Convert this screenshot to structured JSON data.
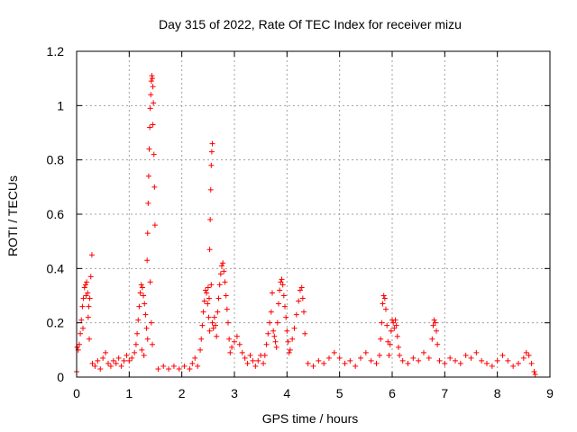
{
  "chart_data": {
    "type": "scatter",
    "title": "Day 315 of 2022, Rate Of TEC Index for receiver mizu",
    "xlabel": "GPS time / hours",
    "ylabel": "ROTI / TECUs",
    "xlim": [
      0,
      9
    ],
    "ylim": [
      0,
      1.2
    ],
    "x_ticks": [
      0,
      1,
      2,
      3,
      4,
      5,
      6,
      7,
      8,
      9
    ],
    "x_tick_labels": [
      "0",
      "1",
      "2",
      "3",
      "4",
      "5",
      "6",
      "7",
      "8",
      "9"
    ],
    "y_ticks": [
      0,
      0.2,
      0.4,
      0.6,
      0.8,
      1.0,
      1.2
    ],
    "y_tick_labels": [
      "0",
      "0.2",
      "0.4",
      "0.6",
      "0.8",
      "1",
      "1.2"
    ],
    "grid": true,
    "marker": "+",
    "marker_color": "#ff0000",
    "series": [
      {
        "name": "ROTI",
        "points": [
          [
            0.0,
            0.02
          ],
          [
            0.01,
            0.11
          ],
          [
            0.03,
            0.1
          ],
          [
            0.05,
            0.12
          ],
          [
            0.07,
            0.16
          ],
          [
            0.09,
            0.21
          ],
          [
            0.11,
            0.26
          ],
          [
            0.13,
            0.29
          ],
          [
            0.15,
            0.33
          ],
          [
            0.17,
            0.34
          ],
          [
            0.19,
            0.35
          ],
          [
            0.21,
            0.31
          ],
          [
            0.23,
            0.26
          ],
          [
            0.25,
            0.29
          ],
          [
            0.27,
            0.37
          ],
          [
            0.29,
            0.45
          ],
          [
            0.18,
            0.3
          ],
          [
            0.22,
            0.22
          ],
          [
            0.24,
            0.14
          ],
          [
            0.12,
            0.18
          ],
          [
            0.3,
            0.05
          ],
          [
            0.35,
            0.04
          ],
          [
            0.4,
            0.06
          ],
          [
            0.45,
            0.03
          ],
          [
            0.5,
            0.07
          ],
          [
            0.55,
            0.09
          ],
          [
            0.6,
            0.05
          ],
          [
            0.65,
            0.04
          ],
          [
            0.7,
            0.06
          ],
          [
            0.75,
            0.05
          ],
          [
            0.8,
            0.07
          ],
          [
            0.85,
            0.04
          ],
          [
            0.9,
            0.06
          ],
          [
            0.95,
            0.08
          ],
          [
            1.0,
            0.06
          ],
          [
            1.05,
            0.07
          ],
          [
            1.1,
            0.09
          ],
          [
            1.13,
            0.12
          ],
          [
            1.15,
            0.16
          ],
          [
            1.17,
            0.21
          ],
          [
            1.19,
            0.26
          ],
          [
            1.21,
            0.31
          ],
          [
            1.23,
            0.34
          ],
          [
            1.25,
            0.33
          ],
          [
            1.27,
            0.3
          ],
          [
            1.29,
            0.27
          ],
          [
            1.31,
            0.23
          ],
          [
            1.33,
            0.18
          ],
          [
            1.35,
            0.14
          ],
          [
            1.28,
            0.08
          ],
          [
            1.24,
            0.1
          ],
          [
            1.34,
            0.43
          ],
          [
            1.35,
            0.53
          ],
          [
            1.36,
            0.64
          ],
          [
            1.37,
            0.74
          ],
          [
            1.38,
            0.84
          ],
          [
            1.39,
            0.92
          ],
          [
            1.4,
            0.99
          ],
          [
            1.41,
            1.04
          ],
          [
            1.42,
            1.09
          ],
          [
            1.43,
            1.11
          ],
          [
            1.44,
            1.1
          ],
          [
            1.45,
            1.07
          ],
          [
            1.46,
            1.01
          ],
          [
            1.45,
            0.93
          ],
          [
            1.47,
            0.82
          ],
          [
            1.48,
            0.7
          ],
          [
            1.49,
            0.56
          ],
          [
            1.4,
            0.35
          ],
          [
            1.42,
            0.2
          ],
          [
            1.44,
            0.12
          ],
          [
            1.55,
            0.03
          ],
          [
            1.65,
            0.04
          ],
          [
            1.75,
            0.03
          ],
          [
            1.85,
            0.04
          ],
          [
            1.95,
            0.03
          ],
          [
            2.05,
            0.04
          ],
          [
            2.15,
            0.03
          ],
          [
            2.2,
            0.05
          ],
          [
            2.25,
            0.07
          ],
          [
            2.3,
            0.04
          ],
          [
            2.35,
            0.1
          ],
          [
            2.37,
            0.14
          ],
          [
            2.39,
            0.19
          ],
          [
            2.41,
            0.24
          ],
          [
            2.43,
            0.28
          ],
          [
            2.45,
            0.32
          ],
          [
            2.47,
            0.31
          ],
          [
            2.49,
            0.27
          ],
          [
            2.51,
            0.22
          ],
          [
            2.53,
            0.17
          ],
          [
            2.5,
            0.33
          ],
          [
            2.52,
            0.29
          ],
          [
            2.53,
            0.47
          ],
          [
            2.54,
            0.58
          ],
          [
            2.55,
            0.69
          ],
          [
            2.56,
            0.78
          ],
          [
            2.57,
            0.83
          ],
          [
            2.58,
            0.86
          ],
          [
            2.56,
            0.34
          ],
          [
            2.58,
            0.2
          ],
          [
            2.6,
            0.18
          ],
          [
            2.62,
            0.22
          ],
          [
            2.64,
            0.19
          ],
          [
            2.66,
            0.15
          ],
          [
            2.68,
            0.24
          ],
          [
            2.7,
            0.29
          ],
          [
            2.72,
            0.34
          ],
          [
            2.74,
            0.38
          ],
          [
            2.76,
            0.41
          ],
          [
            2.78,
            0.42
          ],
          [
            2.8,
            0.39
          ],
          [
            2.82,
            0.35
          ],
          [
            2.84,
            0.3
          ],
          [
            2.86,
            0.25
          ],
          [
            2.88,
            0.2
          ],
          [
            2.9,
            0.14
          ],
          [
            2.92,
            0.09
          ],
          [
            2.95,
            0.11
          ],
          [
            3.0,
            0.13
          ],
          [
            3.05,
            0.15
          ],
          [
            3.1,
            0.12
          ],
          [
            3.15,
            0.09
          ],
          [
            3.2,
            0.07
          ],
          [
            3.25,
            0.05
          ],
          [
            3.3,
            0.08
          ],
          [
            3.35,
            0.06
          ],
          [
            3.4,
            0.04
          ],
          [
            3.45,
            0.06
          ],
          [
            3.5,
            0.08
          ],
          [
            3.55,
            0.05
          ],
          [
            3.58,
            0.08
          ],
          [
            3.61,
            0.12
          ],
          [
            3.64,
            0.16
          ],
          [
            3.67,
            0.2
          ],
          [
            3.7,
            0.24
          ],
          [
            3.72,
            0.31
          ],
          [
            3.74,
            0.17
          ],
          [
            3.76,
            0.15
          ],
          [
            3.78,
            0.13
          ],
          [
            3.8,
            0.11
          ],
          [
            3.82,
            0.2
          ],
          [
            3.84,
            0.27
          ],
          [
            3.86,
            0.32
          ],
          [
            3.88,
            0.35
          ],
          [
            3.9,
            0.36
          ],
          [
            3.92,
            0.34
          ],
          [
            3.94,
            0.3
          ],
          [
            3.96,
            0.26
          ],
          [
            3.98,
            0.22
          ],
          [
            4.0,
            0.17
          ],
          [
            4.02,
            0.13
          ],
          [
            4.04,
            0.09
          ],
          [
            4.06,
            0.1
          ],
          [
            4.1,
            0.14
          ],
          [
            4.14,
            0.18
          ],
          [
            4.18,
            0.23
          ],
          [
            4.22,
            0.28
          ],
          [
            4.25,
            0.32
          ],
          [
            4.28,
            0.33
          ],
          [
            4.3,
            0.29
          ],
          [
            4.32,
            0.24
          ],
          [
            4.34,
            0.16
          ],
          [
            4.4,
            0.05
          ],
          [
            4.5,
            0.04
          ],
          [
            4.6,
            0.06
          ],
          [
            4.7,
            0.05
          ],
          [
            4.8,
            0.07
          ],
          [
            4.9,
            0.09
          ],
          [
            5.0,
            0.07
          ],
          [
            5.1,
            0.05
          ],
          [
            5.2,
            0.06
          ],
          [
            5.3,
            0.04
          ],
          [
            5.4,
            0.07
          ],
          [
            5.5,
            0.09
          ],
          [
            5.6,
            0.06
          ],
          [
            5.7,
            0.05
          ],
          [
            5.76,
            0.08
          ],
          [
            5.78,
            0.14
          ],
          [
            5.8,
            0.2
          ],
          [
            5.82,
            0.27
          ],
          [
            5.84,
            0.3
          ],
          [
            5.86,
            0.29
          ],
          [
            5.88,
            0.25
          ],
          [
            5.9,
            0.19
          ],
          [
            5.92,
            0.13
          ],
          [
            5.94,
            0.08
          ],
          [
            5.96,
            0.12
          ],
          [
            5.98,
            0.17
          ],
          [
            6.0,
            0.21
          ],
          [
            6.02,
            0.2
          ],
          [
            6.04,
            0.18
          ],
          [
            6.06,
            0.21
          ],
          [
            6.08,
            0.19
          ],
          [
            6.1,
            0.15
          ],
          [
            6.12,
            0.11
          ],
          [
            6.14,
            0.08
          ],
          [
            6.2,
            0.06
          ],
          [
            6.3,
            0.05
          ],
          [
            6.4,
            0.07
          ],
          [
            6.5,
            0.06
          ],
          [
            6.6,
            0.09
          ],
          [
            6.7,
            0.07
          ],
          [
            6.76,
            0.14
          ],
          [
            6.78,
            0.19
          ],
          [
            6.8,
            0.21
          ],
          [
            6.82,
            0.2
          ],
          [
            6.84,
            0.17
          ],
          [
            6.86,
            0.12
          ],
          [
            6.9,
            0.06
          ],
          [
            7.0,
            0.05
          ],
          [
            7.1,
            0.07
          ],
          [
            7.2,
            0.06
          ],
          [
            7.3,
            0.05
          ],
          [
            7.4,
            0.08
          ],
          [
            7.5,
            0.07
          ],
          [
            7.6,
            0.09
          ],
          [
            7.7,
            0.06
          ],
          [
            7.8,
            0.05
          ],
          [
            7.9,
            0.04
          ],
          [
            8.0,
            0.06
          ],
          [
            8.1,
            0.08
          ],
          [
            8.2,
            0.06
          ],
          [
            8.3,
            0.04
          ],
          [
            8.4,
            0.05
          ],
          [
            8.5,
            0.07
          ],
          [
            8.55,
            0.09
          ],
          [
            8.6,
            0.08
          ],
          [
            8.65,
            0.05
          ],
          [
            8.7,
            0.02
          ],
          [
            8.72,
            0.01
          ]
        ]
      }
    ]
  }
}
